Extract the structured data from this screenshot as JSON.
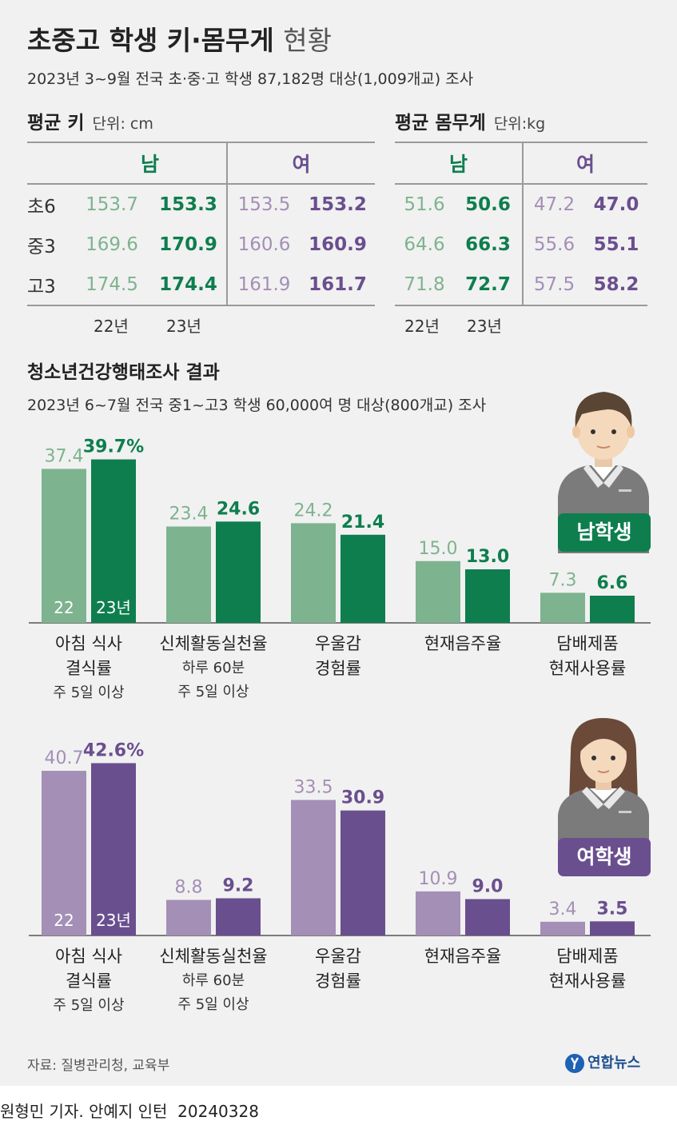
{
  "header": {
    "title": "초중고 학생 키·몸무게",
    "title_light": "현황",
    "subtitle": "2023년 3~9월 전국 초·중·고 학생 87,182명 대상(1,009개교) 조사"
  },
  "height_table": {
    "title": "평균 키",
    "unit": "단위: cm",
    "col_male": "남",
    "col_female": "여",
    "rows": [
      {
        "label": "초6",
        "m22": "153.7",
        "m23": "153.3",
        "f22": "153.5",
        "f23": "153.2"
      },
      {
        "label": "중3",
        "m22": "169.6",
        "m23": "170.9",
        "f22": "160.6",
        "f23": "160.9"
      },
      {
        "label": "고3",
        "m22": "174.5",
        "m23": "174.4",
        "f22": "161.9",
        "f23": "161.7"
      }
    ],
    "year_a": "22년",
    "year_b": "23년"
  },
  "weight_table": {
    "title": "평균 몸무게",
    "unit": "단위:kg",
    "col_male": "남",
    "col_female": "여",
    "rows": [
      {
        "m22": "51.6",
        "m23": "50.6",
        "f22": "47.2",
        "f23": "47.0"
      },
      {
        "m22": "64.6",
        "m23": "66.3",
        "f22": "55.6",
        "f23": "55.1"
      },
      {
        "m22": "71.8",
        "m23": "72.7",
        "f22": "57.5",
        "f23": "58.2"
      }
    ],
    "year_a": "22년",
    "year_b": "23년"
  },
  "survey": {
    "title": "청소년건강행태조사 결과",
    "subtitle": "2023년 6~7월 전국 중1~고3 학생 60,000여 명 대상(800개교) 조사",
    "categories": [
      {
        "line1": "아침 식사",
        "line2": "결식률",
        "note1": "주 5일 이상",
        "note2": ""
      },
      {
        "line1": "신체활동실천율",
        "line2": "",
        "note1": "하루 60분",
        "note2": "주 5일 이상"
      },
      {
        "line1": "우울감",
        "line2": "경험률",
        "note1": "",
        "note2": ""
      },
      {
        "line1": "현재음주율",
        "line2": "",
        "note1": "",
        "note2": ""
      },
      {
        "line1": "담배제품",
        "line2": "현재사용률",
        "note1": "",
        "note2": ""
      }
    ]
  },
  "chart_data": [
    {
      "type": "bar",
      "title": "남학생",
      "categories": [
        "아침 식사 결식률",
        "신체활동실천율",
        "우울감 경험률",
        "현재음주율",
        "담배제품 현재사용률"
      ],
      "series": [
        {
          "name": "22",
          "values": [
            37.4,
            23.4,
            24.2,
            15.0,
            7.3
          ],
          "labels": [
            "37.4",
            "23.4",
            "24.2",
            "15.0",
            "7.3"
          ],
          "color": "#7eb38f"
        },
        {
          "name": "23년",
          "values": [
            39.7,
            24.6,
            21.4,
            13.0,
            6.6
          ],
          "labels": [
            "39.7%",
            "24.6",
            "21.4",
            "13.0",
            "6.6"
          ],
          "color": "#0e7e4e"
        }
      ],
      "ylim": [
        0,
        40
      ]
    },
    {
      "type": "bar",
      "title": "여학생",
      "categories": [
        "아침 식사 결식률",
        "신체활동실천율",
        "우울감 경험률",
        "현재음주율",
        "담배제품 현재사용률"
      ],
      "series": [
        {
          "name": "22",
          "values": [
            40.7,
            8.8,
            33.5,
            10.9,
            3.4
          ],
          "labels": [
            "40.7",
            "8.8",
            "33.5",
            "10.9",
            "3.4"
          ],
          "color": "#a48fb6"
        },
        {
          "name": "23년",
          "values": [
            42.6,
            9.2,
            30.9,
            9.0,
            3.5
          ],
          "labels": [
            "42.6%",
            "9.2",
            "30.9",
            "9.0",
            "3.5"
          ],
          "color": "#6a4f8f"
        }
      ],
      "ylim": [
        0,
        43
      ]
    }
  ],
  "colors": {
    "male_light": "#7eb38f",
    "male_dark": "#0e7e4e",
    "female_light": "#a48fb6",
    "female_dark": "#6a4f8f",
    "background": "#f1f1f1"
  },
  "footer": {
    "source": "자료: 질병관리청, 교육부",
    "logo": "연합뉴스",
    "credit": "원형민 기자. 안예지 인턴",
    "date": "20240328"
  }
}
